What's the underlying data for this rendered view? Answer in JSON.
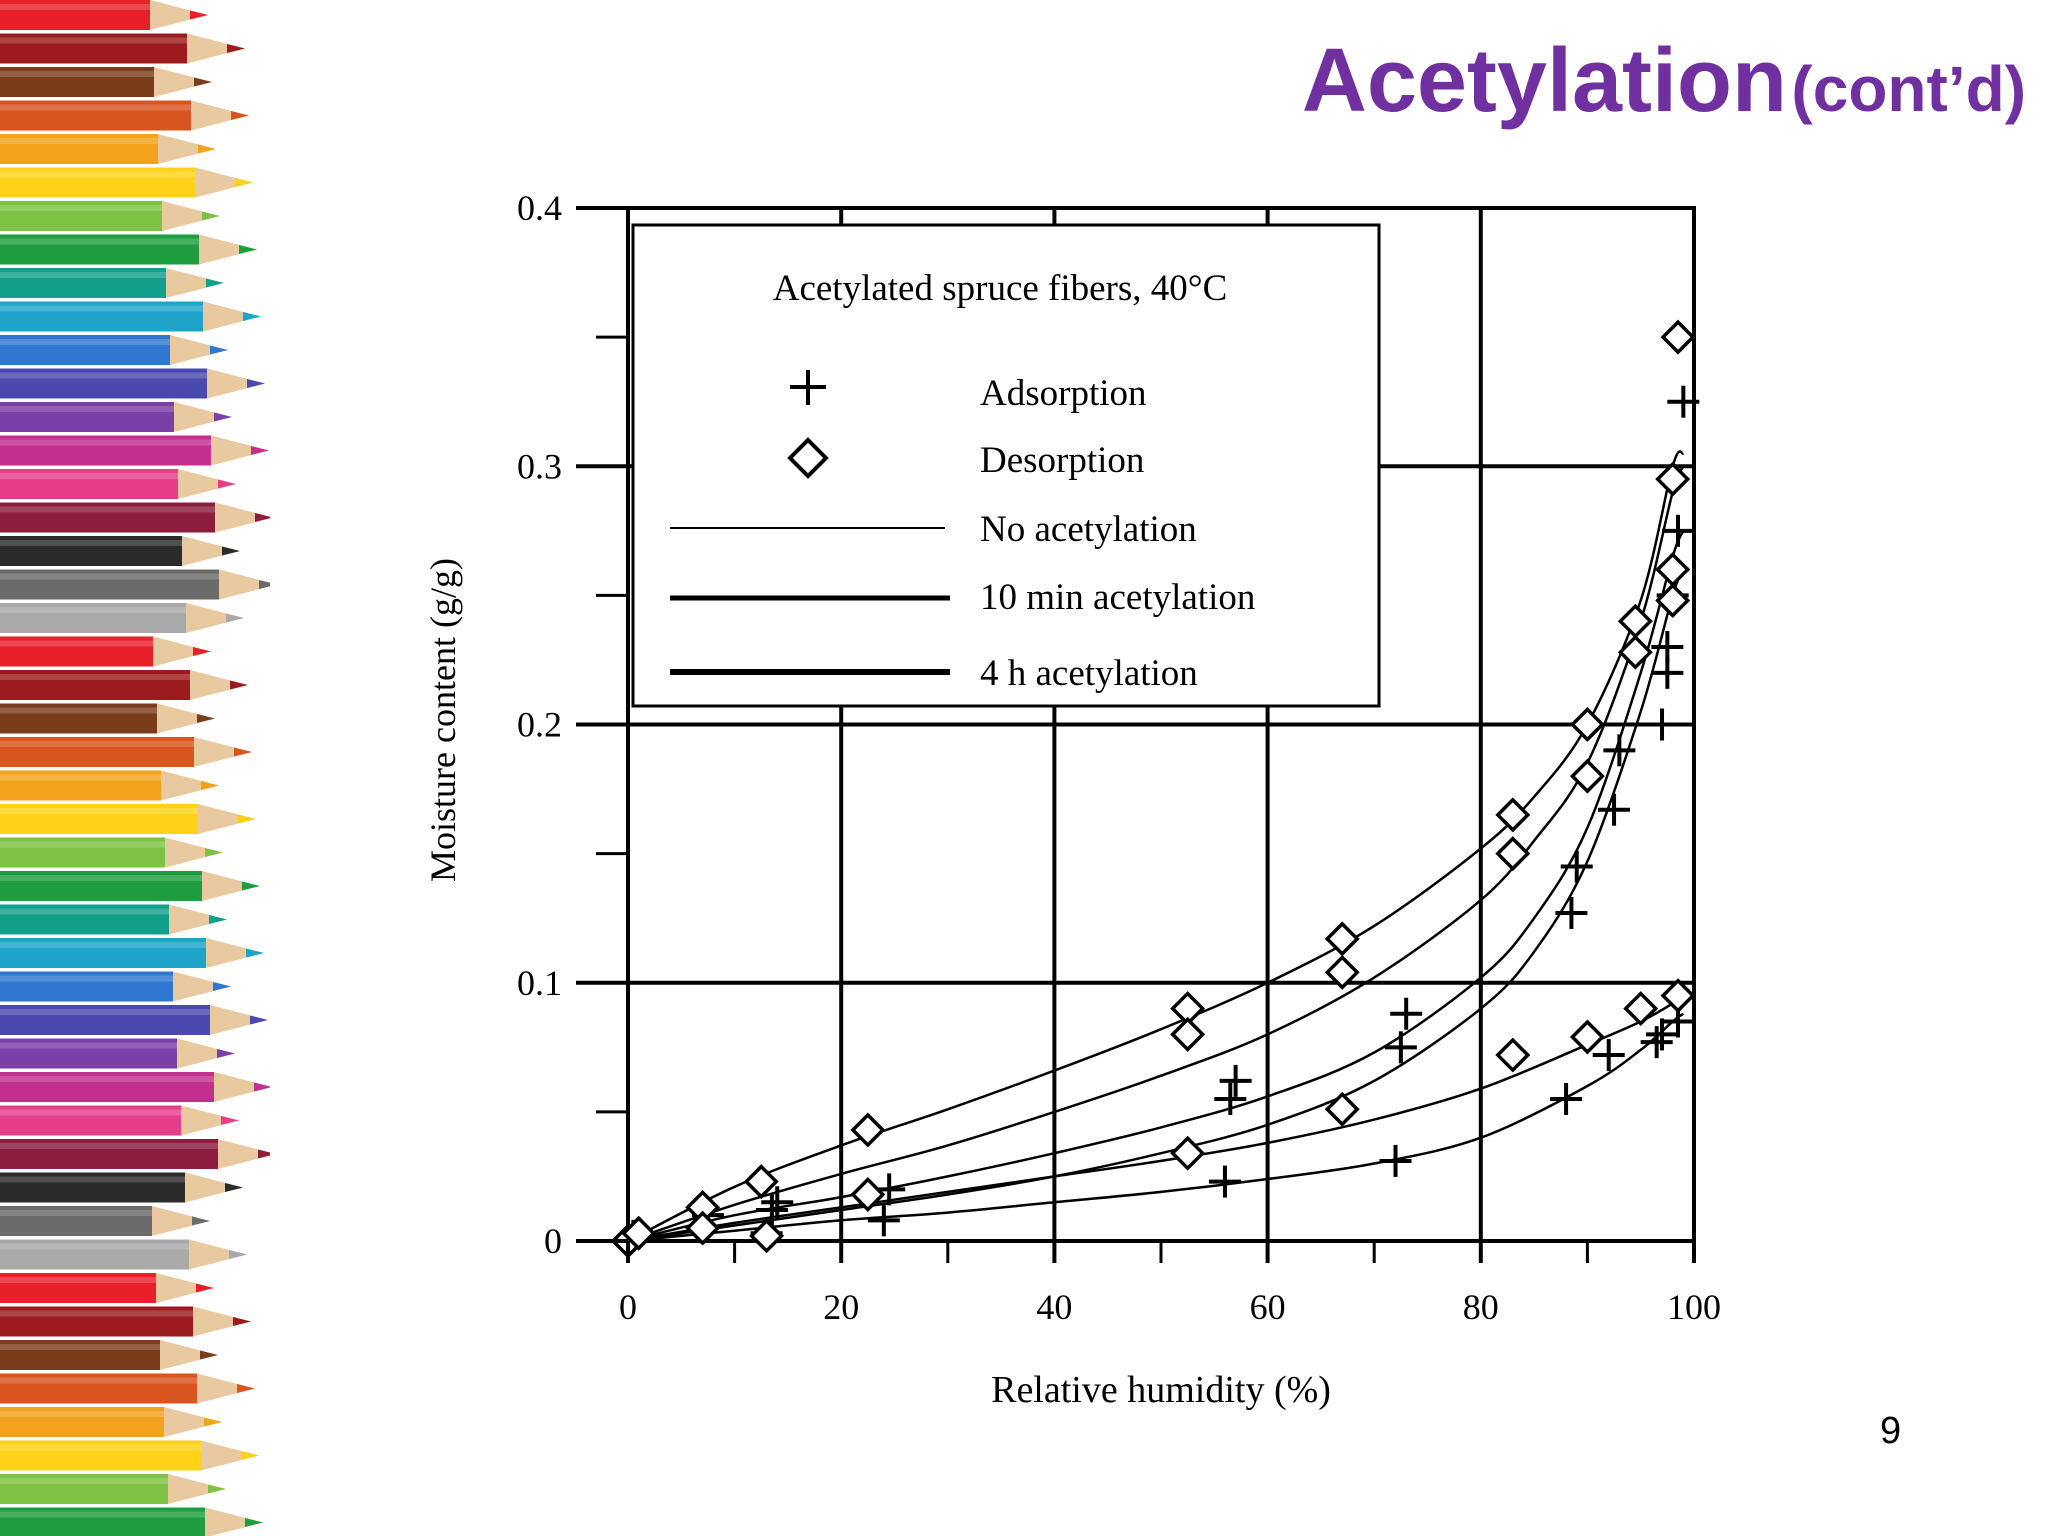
{
  "slide": {
    "title": "Acetylation",
    "title_suffix": "(cont’d)",
    "page_number": "9",
    "title_color": "#7030a0"
  },
  "chart_data": {
    "type": "scatter",
    "title": "",
    "xlabel": "Relative humidity (%)",
    "ylabel": "Moisture content (g/g)",
    "xlim": [
      0,
      100
    ],
    "ylim": [
      0,
      0.4
    ],
    "x_ticks": [
      0,
      20,
      40,
      60,
      80,
      100
    ],
    "x_tick_labels": [
      "0",
      "20",
      "40",
      "60",
      "80",
      "100"
    ],
    "y_ticks": [
      0,
      0.1,
      0.2,
      0.3,
      0.4
    ],
    "y_tick_labels": [
      "0",
      "0.1",
      "0.2",
      "0.3",
      "0.4"
    ],
    "grid": true,
    "legend": {
      "placement": "top-left",
      "heading": "Acetylated spruce fibers, 40°C",
      "entries": [
        {
          "marker": "plus",
          "label": "Adsorption"
        },
        {
          "marker": "diamond",
          "label": "Desorption"
        },
        {
          "line": "thin",
          "label": "No acetylation"
        },
        {
          "line": "medium",
          "label": "10 min acetylation"
        },
        {
          "line": "thick",
          "label": "4 h acetylation"
        }
      ]
    },
    "marker_series": [
      {
        "name": "Adsorption",
        "marker": "plus",
        "points": [
          [
            0,
            0
          ],
          [
            0.5,
            0.002
          ],
          [
            1,
            0.003
          ],
          [
            7,
            0.005
          ],
          [
            7.5,
            0.01
          ],
          [
            13,
            0.003
          ],
          [
            13.5,
            0.012
          ],
          [
            14,
            0.015
          ],
          [
            24,
            0.008
          ],
          [
            24.5,
            0.02
          ],
          [
            56,
            0.023
          ],
          [
            56.5,
            0.055
          ],
          [
            57,
            0.062
          ],
          [
            72,
            0.031
          ],
          [
            72.5,
            0.075
          ],
          [
            73,
            0.088
          ],
          [
            88,
            0.055
          ],
          [
            88.5,
            0.127
          ],
          [
            89,
            0.145
          ],
          [
            92,
            0.072
          ],
          [
            92.5,
            0.167
          ],
          [
            93,
            0.19
          ],
          [
            96.5,
            0.077
          ],
          [
            97,
            0.08
          ],
          [
            97,
            0.2
          ],
          [
            97.5,
            0.22
          ],
          [
            97.5,
            0.23
          ],
          [
            98,
            0.25
          ],
          [
            98,
            0.26
          ],
          [
            98.5,
            0.275
          ],
          [
            98.5,
            0.085
          ],
          [
            99,
            0.325
          ]
        ]
      },
      {
        "name": "Desorption",
        "marker": "diamond",
        "points": [
          [
            0,
            0
          ],
          [
            1,
            0.003
          ],
          [
            7,
            0.013
          ],
          [
            7,
            0.005
          ],
          [
            12.5,
            0.023
          ],
          [
            13,
            0.002
          ],
          [
            22.5,
            0.043
          ],
          [
            22.5,
            0.018
          ],
          [
            52.5,
            0.09
          ],
          [
            52.5,
            0.08
          ],
          [
            52.5,
            0.034
          ],
          [
            67,
            0.117
          ],
          [
            67,
            0.104
          ],
          [
            67,
            0.051
          ],
          [
            83,
            0.165
          ],
          [
            83,
            0.15
          ],
          [
            83,
            0.072
          ],
          [
            90,
            0.2
          ],
          [
            90,
            0.18
          ],
          [
            90,
            0.079
          ],
          [
            94.5,
            0.24
          ],
          [
            94.5,
            0.228
          ],
          [
            95,
            0.09
          ],
          [
            98,
            0.295
          ],
          [
            98,
            0.26
          ],
          [
            98,
            0.248
          ],
          [
            98.5,
            0.095
          ],
          [
            98.5,
            0.35
          ]
        ]
      }
    ],
    "curves": [
      {
        "label": "No acetylation (desorption)",
        "x": [
          0,
          10,
          20,
          30,
          40,
          50,
          60,
          70,
          80,
          85,
          90,
          95,
          98,
          99
        ],
        "y": [
          0,
          0.021,
          0.037,
          0.051,
          0.066,
          0.082,
          0.1,
          0.122,
          0.152,
          0.172,
          0.2,
          0.248,
          0.3,
          0.305
        ]
      },
      {
        "label": "No acetylation (adsorption)",
        "x": [
          0,
          10,
          20,
          30,
          40,
          50,
          60,
          70,
          80,
          85,
          90,
          95,
          98,
          99
        ],
        "y": [
          0,
          0.014,
          0.026,
          0.037,
          0.05,
          0.064,
          0.08,
          0.102,
          0.132,
          0.155,
          0.185,
          0.24,
          0.29,
          0.3
        ]
      },
      {
        "label": "10 min acetylation (desorption)",
        "x": [
          0,
          10,
          20,
          30,
          40,
          50,
          60,
          70,
          80,
          85,
          90,
          95,
          98,
          99
        ],
        "y": [
          0,
          0.01,
          0.017,
          0.025,
          0.034,
          0.044,
          0.056,
          0.073,
          0.102,
          0.125,
          0.16,
          0.22,
          0.265,
          0.275
        ]
      },
      {
        "label": "10 min acetylation (adsorption)",
        "x": [
          0,
          10,
          20,
          30,
          40,
          50,
          60,
          70,
          80,
          85,
          90,
          95,
          98,
          99
        ],
        "y": [
          0,
          0.006,
          0.012,
          0.018,
          0.025,
          0.034,
          0.045,
          0.062,
          0.09,
          0.112,
          0.147,
          0.205,
          0.25,
          0.26
        ]
      },
      {
        "label": "4 h acetylation (desorption)",
        "x": [
          0,
          10,
          20,
          30,
          40,
          50,
          60,
          70,
          80,
          90,
          95,
          98,
          99
        ],
        "y": [
          0,
          0.007,
          0.013,
          0.019,
          0.025,
          0.031,
          0.038,
          0.047,
          0.059,
          0.076,
          0.085,
          0.092,
          0.095
        ]
      },
      {
        "label": "4 h acetylation (adsorption)",
        "x": [
          0,
          10,
          20,
          30,
          40,
          50,
          60,
          70,
          80,
          90,
          95,
          98,
          99
        ],
        "y": [
          0,
          0.004,
          0.008,
          0.011,
          0.015,
          0.019,
          0.024,
          0.03,
          0.04,
          0.06,
          0.074,
          0.085,
          0.088
        ]
      }
    ]
  }
}
